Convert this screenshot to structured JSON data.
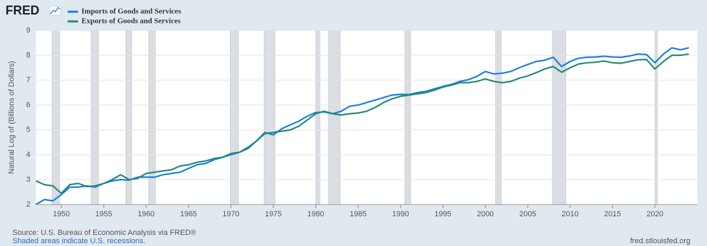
{
  "chart_data": {
    "type": "line",
    "logo": "FRED",
    "y_label": "Natural Log of (Billions of Dollars)",
    "source": "Source: U.S. Bureau of Economic Analysis via FRED®",
    "note": "Shaded areas indicate U.S. recessions.",
    "url": "fred.stlouisfed.org",
    "x": [
      1947,
      1948,
      1949,
      1950,
      1951,
      1952,
      1953,
      1954,
      1955,
      1956,
      1957,
      1958,
      1959,
      1960,
      1961,
      1962,
      1963,
      1964,
      1965,
      1966,
      1967,
      1968,
      1969,
      1970,
      1971,
      1972,
      1973,
      1974,
      1975,
      1976,
      1977,
      1978,
      1979,
      1980,
      1981,
      1982,
      1983,
      1984,
      1985,
      1986,
      1987,
      1988,
      1989,
      1990,
      1991,
      1992,
      1993,
      1994,
      1995,
      1996,
      1997,
      1998,
      1999,
      2000,
      2001,
      2002,
      2003,
      2004,
      2005,
      2006,
      2007,
      2008,
      2009,
      2010,
      2011,
      2012,
      2013,
      2014,
      2015,
      2016,
      2017,
      2018,
      2019,
      2020,
      2021,
      2022,
      2023,
      2024
    ],
    "series": [
      {
        "name": "Imports of Goods and Services",
        "color": "#1a7ee0",
        "values": [
          2.0,
          2.2,
          2.15,
          2.4,
          2.7,
          2.7,
          2.75,
          2.7,
          2.85,
          2.95,
          3.0,
          2.98,
          3.1,
          3.1,
          3.1,
          3.2,
          3.25,
          3.3,
          3.45,
          3.6,
          3.65,
          3.8,
          3.9,
          4.0,
          4.1,
          4.3,
          4.55,
          4.9,
          4.8,
          5.05,
          5.2,
          5.35,
          5.55,
          5.7,
          5.72,
          5.65,
          5.75,
          5.95,
          6.0,
          6.1,
          6.2,
          6.3,
          6.4,
          6.43,
          6.42,
          6.5,
          6.55,
          6.65,
          6.75,
          6.83,
          6.95,
          7.02,
          7.15,
          7.35,
          7.25,
          7.28,
          7.35,
          7.5,
          7.63,
          7.75,
          7.8,
          7.92,
          7.55,
          7.75,
          7.88,
          7.92,
          7.93,
          7.96,
          7.93,
          7.92,
          7.97,
          8.05,
          8.03,
          7.7,
          8.05,
          8.3,
          8.22,
          8.3
        ]
      },
      {
        "name": "Exports of Goods and Services",
        "color": "#238a78",
        "values": [
          2.95,
          2.8,
          2.75,
          2.45,
          2.8,
          2.85,
          2.72,
          2.75,
          2.85,
          3.0,
          3.2,
          3.0,
          3.05,
          3.25,
          3.3,
          3.35,
          3.4,
          3.55,
          3.6,
          3.7,
          3.75,
          3.85,
          3.9,
          4.05,
          4.1,
          4.25,
          4.55,
          4.85,
          4.9,
          4.95,
          5.0,
          5.15,
          5.4,
          5.65,
          5.75,
          5.65,
          5.6,
          5.65,
          5.68,
          5.75,
          5.9,
          6.1,
          6.25,
          6.35,
          6.4,
          6.45,
          6.5,
          6.6,
          6.72,
          6.8,
          6.9,
          6.9,
          6.95,
          7.05,
          6.95,
          6.9,
          6.95,
          7.08,
          7.17,
          7.3,
          7.45,
          7.55,
          7.32,
          7.5,
          7.65,
          7.7,
          7.72,
          7.77,
          7.7,
          7.68,
          7.75,
          7.82,
          7.83,
          7.45,
          7.75,
          8.0,
          8.0,
          8.05
        ]
      }
    ],
    "recessions": [
      [
        1948.9,
        1949.8
      ],
      [
        1953.5,
        1954.4
      ],
      [
        1957.6,
        1958.3
      ],
      [
        1960.3,
        1961.1
      ],
      [
        1969.9,
        1970.9
      ],
      [
        1973.9,
        1975.2
      ],
      [
        1980.0,
        1980.5
      ],
      [
        1981.5,
        1982.9
      ],
      [
        1990.5,
        1991.2
      ],
      [
        2001.2,
        2001.9
      ],
      [
        2007.9,
        2009.5
      ],
      [
        2020.0,
        2020.3
      ]
    ],
    "recession_color": "#dadde1",
    "xlim": [
      1947,
      2025
    ],
    "xticks": [
      1950,
      1955,
      1960,
      1965,
      1970,
      1975,
      1980,
      1985,
      1990,
      1995,
      2000,
      2005,
      2010,
      2015,
      2020
    ],
    "ylim": [
      2,
      9
    ],
    "yticks": [
      2,
      3,
      4,
      5,
      6,
      7,
      8,
      9
    ],
    "grid": true
  }
}
